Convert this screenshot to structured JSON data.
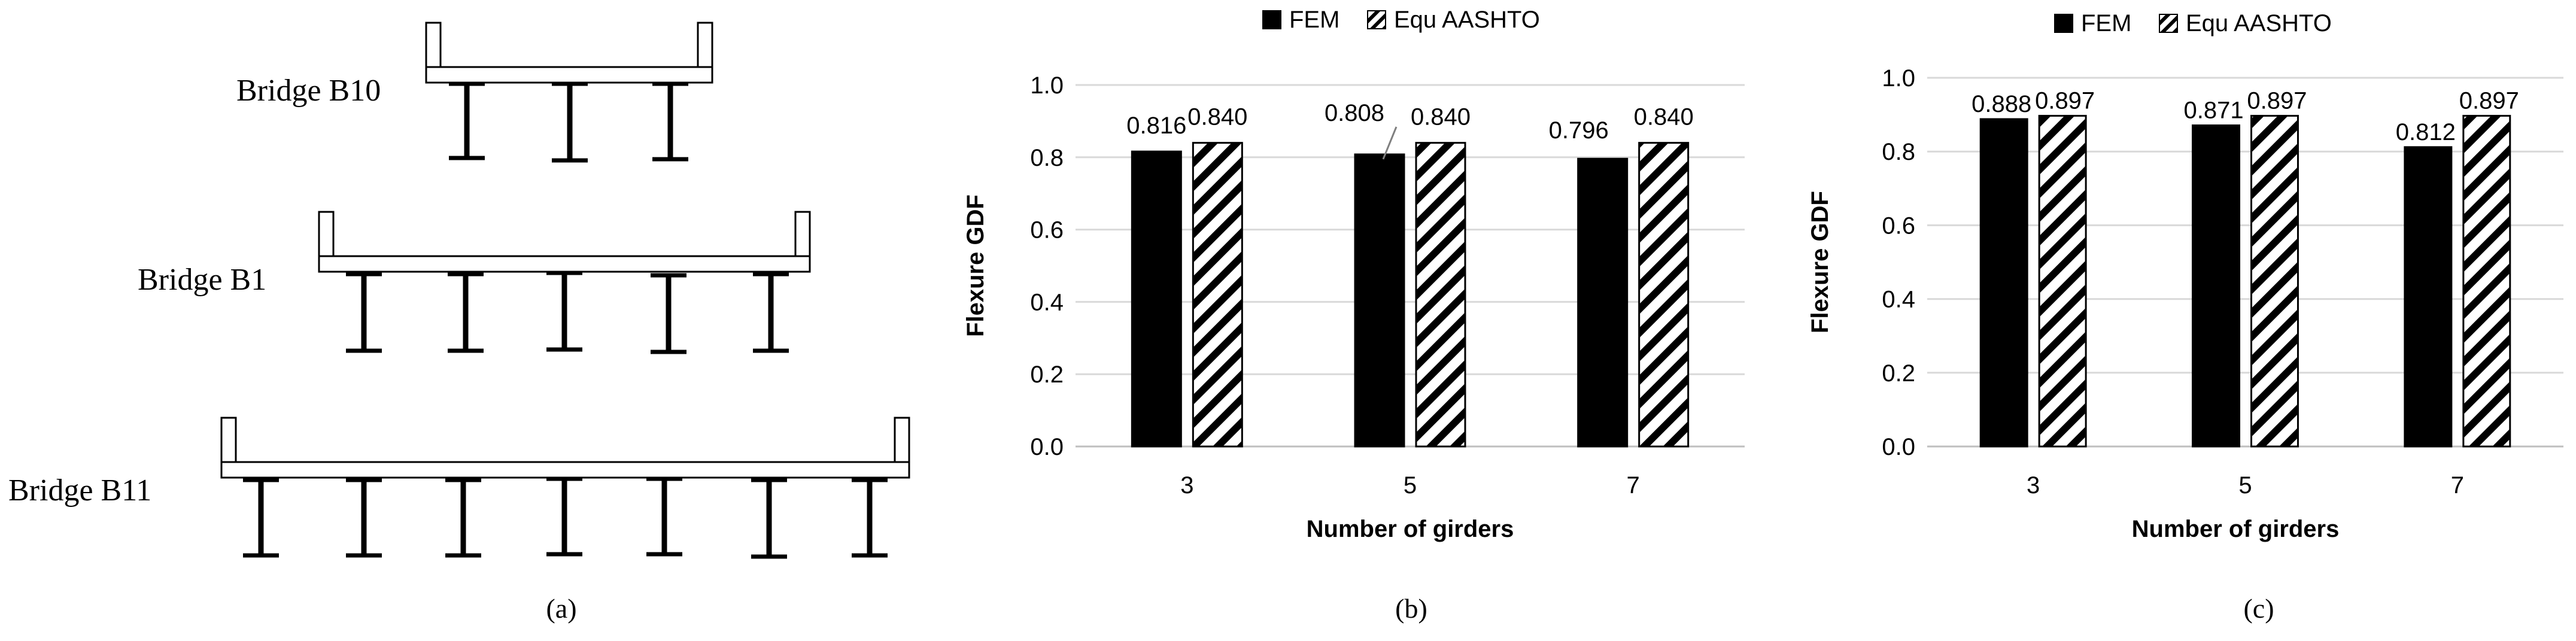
{
  "figure": {
    "panel_labels": [
      "(a)",
      "(b)",
      "(c)"
    ]
  },
  "panel_a": {
    "bridges": [
      {
        "name": "Bridge B10",
        "girders": 3
      },
      {
        "name": "Bridge B1",
        "girders": 5
      },
      {
        "name": "Bridge B11",
        "girders": 7
      }
    ]
  },
  "colors": {
    "fem": "#000000",
    "aashto_stripe": "#000000",
    "gridline": "#d9d9d9",
    "axis": "#000000"
  },
  "chart_data": [
    {
      "type": "bar",
      "panel": "(b)",
      "categories": [
        "3",
        "5",
        "7"
      ],
      "series": [
        {
          "name": "FEM",
          "values": [
            0.816,
            0.808,
            0.796
          ],
          "labels": [
            "0.816",
            "0.808",
            "0.796"
          ]
        },
        {
          "name": "Equ AASHTO",
          "values": [
            0.84,
            0.84,
            0.84
          ],
          "labels": [
            "0.840",
            "0.840",
            "0.840"
          ]
        }
      ],
      "xlabel": "Number of girders",
      "ylabel": "Flexure GDF",
      "ylim": [
        0,
        1.0
      ],
      "yticks": [
        "0.0",
        "0.2",
        "0.4",
        "0.6",
        "0.8",
        "1.0"
      ],
      "grid": true,
      "legend": "top"
    },
    {
      "type": "bar",
      "panel": "(c)",
      "categories": [
        "3",
        "5",
        "7"
      ],
      "series": [
        {
          "name": "FEM",
          "values": [
            0.888,
            0.871,
            0.812
          ],
          "labels": [
            "0.888",
            "0.871",
            "0.812"
          ]
        },
        {
          "name": "Equ AASHTO",
          "values": [
            0.897,
            0.897,
            0.897
          ],
          "labels": [
            "0.897",
            "0.897",
            "0.897"
          ]
        }
      ],
      "xlabel": "Number of girders",
      "ylabel": "Flexure GDF",
      "ylim": [
        0,
        1.0
      ],
      "yticks": [
        "0.0",
        "0.2",
        "0.4",
        "0.6",
        "0.8",
        "1.0"
      ],
      "grid": true,
      "legend": "top"
    }
  ]
}
